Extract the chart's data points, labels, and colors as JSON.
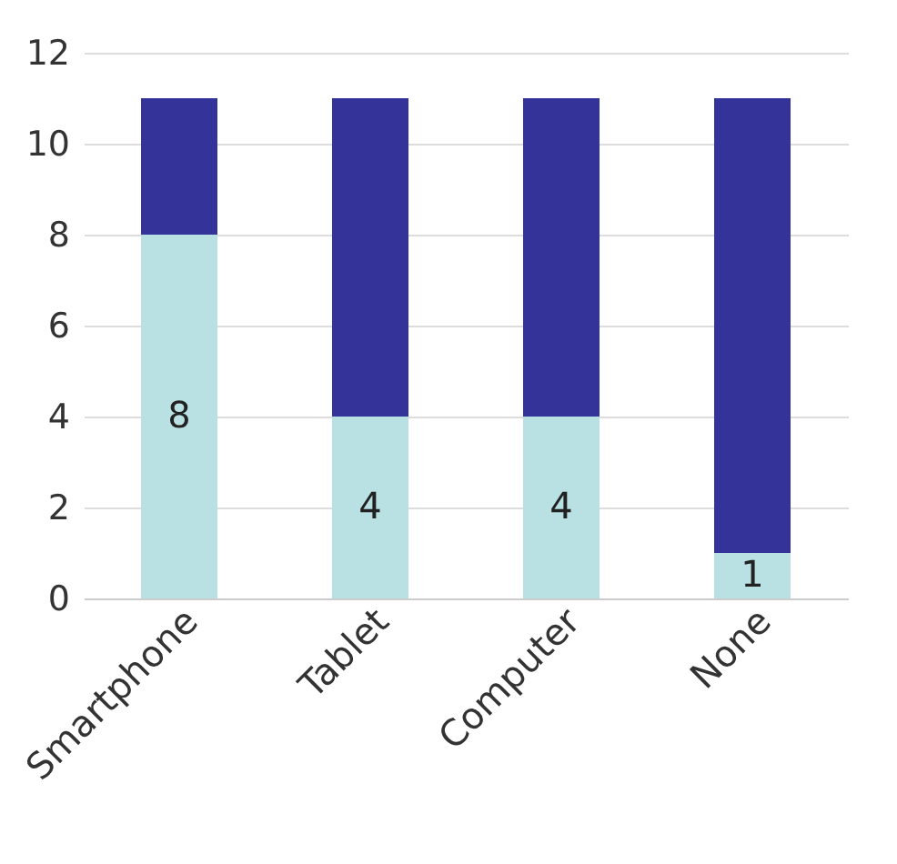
{
  "chart_data": {
    "type": "bar",
    "stacked": true,
    "categories": [
      "Smartphone",
      "Tablet",
      "Computer",
      "None"
    ],
    "series": [
      {
        "color": "#b9e1e3",
        "values": [
          8,
          4,
          4,
          1
        ],
        "value_labels": [
          "8",
          "4",
          "4",
          "1"
        ]
      },
      {
        "color": "#333399",
        "values": [
          3,
          7,
          7,
          10
        ]
      }
    ],
    "ylim": [
      0,
      12
    ],
    "yticks": [
      0,
      2,
      4,
      6,
      8,
      10,
      12
    ],
    "grid": "y"
  }
}
